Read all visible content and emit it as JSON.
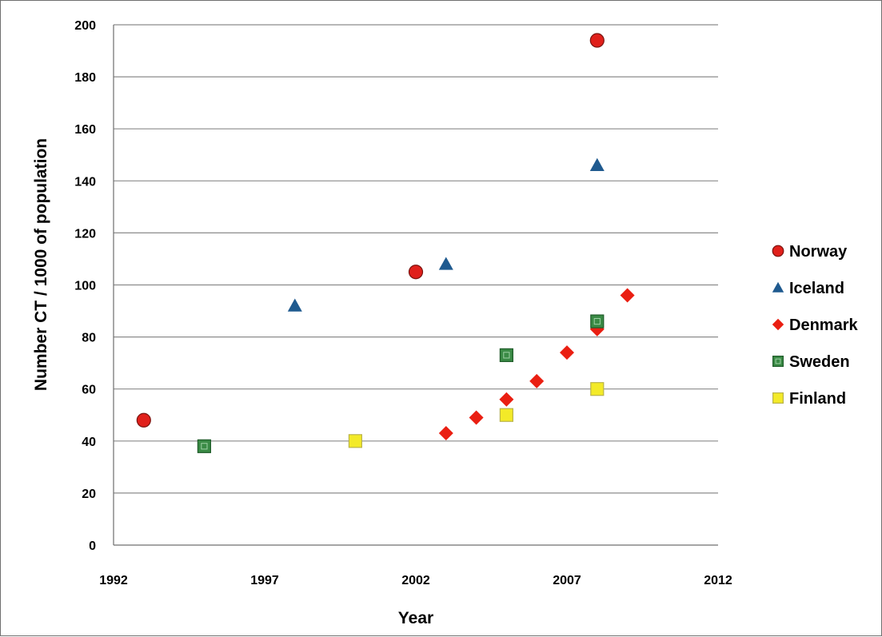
{
  "chart_data": {
    "type": "scatter",
    "title": "",
    "xlabel": "Year",
    "ylabel": "Number CT / 1000 of population",
    "xlim": [
      1992,
      2012
    ],
    "ylim": [
      0,
      200
    ],
    "x_ticks": [
      "1992",
      "1997",
      "2002",
      "2007",
      "2012"
    ],
    "y_ticks": [
      "0",
      "20",
      "40",
      "60",
      "80",
      "100",
      "120",
      "140",
      "160",
      "180",
      "200"
    ],
    "grid": true,
    "legend_position": "right",
    "series": [
      {
        "name": "Norway",
        "marker": "circle",
        "color": "#e0201b",
        "points": [
          [
            1993,
            48
          ],
          [
            2002,
            105
          ],
          [
            2008,
            194
          ]
        ]
      },
      {
        "name": "Iceland",
        "marker": "triangle",
        "color": "#1f5a8f",
        "points": [
          [
            1998,
            92
          ],
          [
            2003,
            108
          ],
          [
            2008,
            146
          ]
        ]
      },
      {
        "name": "Denmark",
        "marker": "diamond",
        "color": "#ea1f12",
        "points": [
          [
            2003,
            43
          ],
          [
            2004,
            49
          ],
          [
            2005,
            56
          ],
          [
            2006,
            63
          ],
          [
            2007,
            74
          ],
          [
            2008,
            83
          ],
          [
            2009,
            96
          ]
        ]
      },
      {
        "name": "Sweden",
        "marker": "square",
        "color": "#3a8a45",
        "points": [
          [
            1995,
            38
          ],
          [
            2005,
            73
          ],
          [
            2008,
            86
          ]
        ]
      },
      {
        "name": "Finland",
        "marker": "square",
        "color": "#f3ea28",
        "points": [
          [
            2000,
            40
          ],
          [
            2005,
            50
          ],
          [
            2008,
            60
          ]
        ]
      }
    ]
  }
}
